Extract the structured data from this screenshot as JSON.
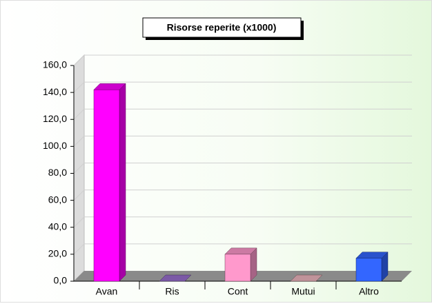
{
  "chart_data": {
    "type": "bar3d",
    "title": "Risorse reperite (x1000)",
    "categories": [
      "Avan",
      "Ris",
      "Cont",
      "Mutui",
      "Altro"
    ],
    "values": [
      142,
      0,
      20,
      0,
      17
    ],
    "colors": [
      "#ff00ff",
      "#9a6fd0",
      "#ff99cc",
      "#f0b8c0",
      "#3366ff"
    ],
    "ylim": [
      0,
      160
    ],
    "yticks": [
      {
        "value": 0,
        "label": "0,0"
      },
      {
        "value": 20,
        "label": "20,0"
      },
      {
        "value": 40,
        "label": "40,0"
      },
      {
        "value": 60,
        "label": "60,0"
      },
      {
        "value": 80,
        "label": "80,0"
      },
      {
        "value": 100,
        "label": "100,0"
      },
      {
        "value": 120,
        "label": "120,0"
      },
      {
        "value": 140,
        "label": "140,0"
      },
      {
        "value": 160,
        "label": "160,0"
      }
    ],
    "grid": true
  }
}
